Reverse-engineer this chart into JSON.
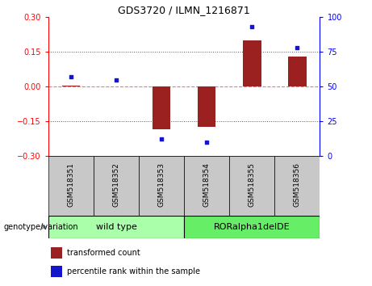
{
  "title": "GDS3720 / ILMN_1216871",
  "samples": [
    "GSM518351",
    "GSM518352",
    "GSM518353",
    "GSM518354",
    "GSM518355",
    "GSM518356"
  ],
  "transformed_counts": [
    0.005,
    0.0,
    -0.185,
    -0.175,
    0.2,
    0.13
  ],
  "percentile_ranks": [
    57,
    55,
    12,
    10,
    93,
    78
  ],
  "ylim_left": [
    -0.3,
    0.3
  ],
  "ylim_right": [
    0,
    100
  ],
  "yticks_left": [
    -0.3,
    -0.15,
    0,
    0.15,
    0.3
  ],
  "yticks_right": [
    0,
    25,
    50,
    75,
    100
  ],
  "bar_color": "#9B2121",
  "scatter_color": "#1515CC",
  "hline_color": "#FF7070",
  "dotted_color": "#555555",
  "legend_bar_label": "transformed count",
  "legend_scatter_label": "percentile rank within the sample",
  "genotype_label": "genotype/variation",
  "group1_label": "wild type",
  "group2_label": "RORalpha1delDE",
  "group1_color": "#AAFFAA",
  "group2_color": "#66EE66",
  "sample_box_color": "#C8C8C8",
  "bar_width": 0.4
}
